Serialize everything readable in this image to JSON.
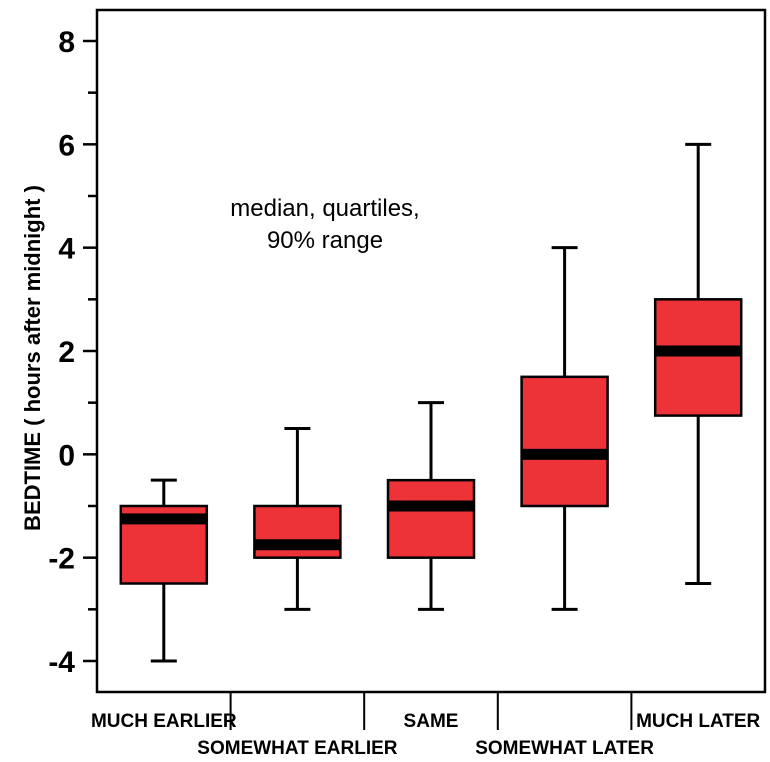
{
  "chart_data": {
    "type": "box",
    "ylabel": "BEDTIME  ( hours  after  midnight )",
    "annotation": [
      "median, quartiles,",
      "90% range"
    ],
    "ylim": [
      -4.6,
      8.6
    ],
    "yticks": [
      -4,
      -2,
      0,
      2,
      4,
      6,
      8
    ],
    "yticklabels": [
      "-4",
      "-2",
      "0",
      "2",
      "4",
      "6",
      "8"
    ],
    "box_color": "#ee3338",
    "categories": [
      "MUCH EARLIER",
      "SOMEWHAT EARLIER",
      "SAME",
      "SOMEWHAT LATER",
      "MUCH LATER"
    ],
    "boxes": [
      {
        "category": "MUCH EARLIER",
        "whisker_low": -4,
        "q1": -2.5,
        "median": -1.25,
        "q3": -1,
        "whisker_high": -0.5
      },
      {
        "category": "SOMEWHAT EARLIER",
        "whisker_low": -3,
        "q1": -2,
        "median": -1.75,
        "q3": -1,
        "whisker_high": 0.5
      },
      {
        "category": "SAME",
        "whisker_low": -3,
        "q1": -2,
        "median": -1,
        "q3": -0.5,
        "whisker_high": 1
      },
      {
        "category": "SOMEWHAT LATER",
        "whisker_low": -3,
        "q1": -1,
        "median": 0,
        "q3": 1.5,
        "whisker_high": 4
      },
      {
        "category": "MUCH LATER",
        "whisker_low": -2.5,
        "q1": 0.75,
        "median": 2,
        "q3": 3,
        "whisker_high": 6
      }
    ]
  }
}
